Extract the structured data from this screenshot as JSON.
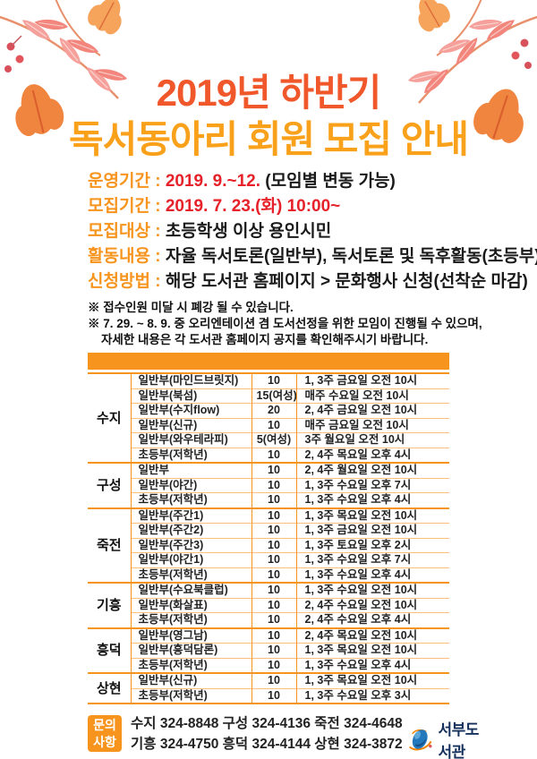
{
  "title": {
    "line1": "2019년 하반기",
    "line2": "독서동아리 회원 모집 안내"
  },
  "info": [
    {
      "label": "운영기간",
      "red": "2019. 9.~12.",
      "black": "(모임별 변동 가능)"
    },
    {
      "label": "모집기간",
      "red": "2019. 7. 23.(화) 10:00~",
      "black": ""
    },
    {
      "label": "모집대상",
      "red": "",
      "black": "초등학생 이상 용인시민"
    },
    {
      "label": "활동내용",
      "red": "",
      "black": "자율 독서토론(일반부), 독서토론 및 독후활동(초등부)"
    },
    {
      "label": "신청방법",
      "red": "",
      "black": "해당 도서관 홈페이지 > 문화행사 신청(선착순 마감)"
    }
  ],
  "notes": [
    {
      "text": "※ 접수인원 미달 시 폐강 될 수 있습니다.",
      "indent": false
    },
    {
      "text": "※ 7. 29. ~ 8. 9. 중 오리엔테이션 겸 도서선정을 위한 모임이 진행될 수 있으며,",
      "indent": false
    },
    {
      "text": "자세한 내용은 각 도서관 홈페이지 공지를 확인해주시기 바랍니다.",
      "indent": true
    }
  ],
  "table": {
    "groups": [
      {
        "library": "수지",
        "rows": [
          {
            "club": "일반부(마인드브릿지)",
            "capacity": "10",
            "schedule": "1, 3주 금요일 오전 10시"
          },
          {
            "club": "일반부(북섬)",
            "capacity": "15(여성)",
            "schedule": "매주 수요일 오전 10시"
          },
          {
            "club": "일반부(수지flow)",
            "capacity": "20",
            "schedule": "2, 4주 금요일 오전 10시"
          },
          {
            "club": "일반부(신규)",
            "capacity": "10",
            "schedule": "매주 금요일 오전 10시"
          },
          {
            "club": "일반부(와우테라피)",
            "capacity": "5(여성)",
            "schedule": "3주 월요일 오전 10시"
          },
          {
            "club": "초등부(저학년)",
            "capacity": "10",
            "schedule": "2, 4주 목요일 오후 4시"
          }
        ]
      },
      {
        "library": "구성",
        "rows": [
          {
            "club": "일반부",
            "capacity": "10",
            "schedule": "2, 4주 월요일 오전 10시"
          },
          {
            "club": "일반부(야간)",
            "capacity": "10",
            "schedule": "1, 3주 수요일 오후 7시"
          },
          {
            "club": "초등부(저학년)",
            "capacity": "10",
            "schedule": "1, 3주 수요일 오후 4시"
          }
        ]
      },
      {
        "library": "죽전",
        "rows": [
          {
            "club": "일반부(주간1)",
            "capacity": "10",
            "schedule": "1, 3주 목요일 오전 10시"
          },
          {
            "club": "일반부(주간2)",
            "capacity": "10",
            "schedule": "1, 3주 금요일 오전 10시"
          },
          {
            "club": "일반부(주간3)",
            "capacity": "10",
            "schedule": "1, 3주 토요일 오후 2시"
          },
          {
            "club": "일반부(야간1)",
            "capacity": "10",
            "schedule": "1, 3주 수요일 오후 7시"
          },
          {
            "club": "초등부(저학년)",
            "capacity": "10",
            "schedule": "1, 3주 수요일 오후 4시"
          }
        ]
      },
      {
        "library": "기흥",
        "rows": [
          {
            "club": "일반부(수요북클럽)",
            "capacity": "10",
            "schedule": "1, 3주 수요일 오전 10시"
          },
          {
            "club": "일반부(화살표)",
            "capacity": "10",
            "schedule": "2, 4주 수요일 오전 10시"
          },
          {
            "club": "초등부(저학년)",
            "capacity": "10",
            "schedule": "2, 4주 수요일 오후 4시"
          }
        ]
      },
      {
        "library": "흥덕",
        "rows": [
          {
            "club": "일반부(영그남)",
            "capacity": "10",
            "schedule": "2, 4주 목요일 오전 10시"
          },
          {
            "club": "일반부(흥덕담론)",
            "capacity": "10",
            "schedule": "1, 3주 목요일 오전 10시"
          },
          {
            "club": "초등부(저학년)",
            "capacity": "10",
            "schedule": "1, 3주 수요일 오후 4시"
          }
        ]
      },
      {
        "library": "상현",
        "rows": [
          {
            "club": "일반부(신규)",
            "capacity": "10",
            "schedule": "1, 3주 목요일 오전 10시"
          },
          {
            "club": "초등부(저학년)",
            "capacity": "10",
            "schedule": "1, 3주 수요일 오후 3시"
          }
        ]
      }
    ]
  },
  "footer": {
    "badge_line1": "문의",
    "badge_line2": "사항",
    "phones_line1": "수지 324-8848 구성 324-4136 죽전 324-4648",
    "phones_line2": "기흥 324-4750 흥덕 324-4144 상현 324-3872",
    "logo_text": "서부도서관"
  },
  "colors": {
    "accent_orange": "#F7941D",
    "title_redorange": "#F0572B",
    "title_orange": "#F9A11B",
    "highlight_red": "#E62129",
    "logo_navy": "#16305E",
    "row_divider": "#FBBE7D"
  }
}
